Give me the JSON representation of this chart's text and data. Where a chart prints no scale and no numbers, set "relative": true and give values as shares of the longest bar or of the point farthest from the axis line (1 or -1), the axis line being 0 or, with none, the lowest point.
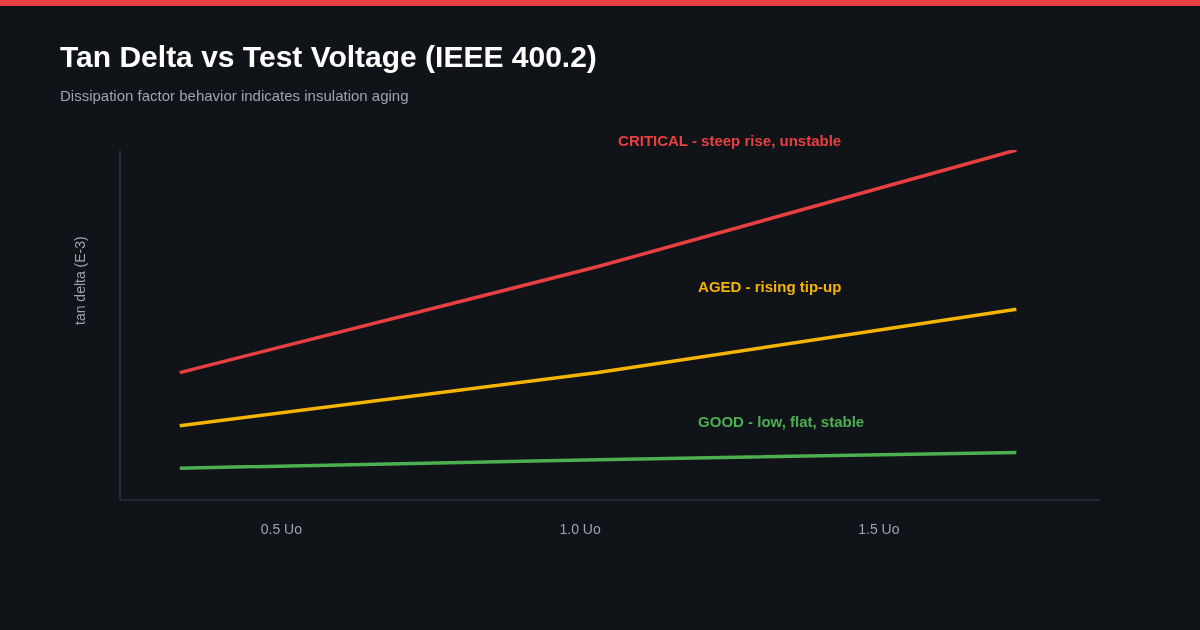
{
  "chart_data": {
    "type": "line",
    "title": "Tan Delta vs Test Voltage (IEEE 400.2)",
    "subtitle": "Dissipation factor behavior indicates insulation aging",
    "ylabel": "tan delta (E-3)",
    "relative": true,
    "x": [
      0.33,
      1.03,
      1.73
    ],
    "xlim": [
      0.23,
      1.87
    ],
    "xticks": [
      {
        "value": 0.5,
        "label": "0.5 Uo"
      },
      {
        "value": 1.0,
        "label": "1.0 Uo"
      },
      {
        "value": 1.5,
        "label": "1.5 Uo"
      }
    ],
    "series": [
      {
        "name": "CRITICAL - steep rise, unstable",
        "color": "#e84040",
        "values": [
          0.364,
          0.667,
          1
        ]
      },
      {
        "name": "AGED - rising tip-up",
        "color": "#f5b400",
        "values": [
          0.212,
          0.364,
          0.545
        ]
      },
      {
        "name": "GOOD - low, flat, stable",
        "color": "#4caf50",
        "values": [
          0.091,
          0.115,
          0.136
        ]
      }
    ],
    "grid": false,
    "legend": false,
    "marker": "none",
    "line_style": "solid"
  }
}
